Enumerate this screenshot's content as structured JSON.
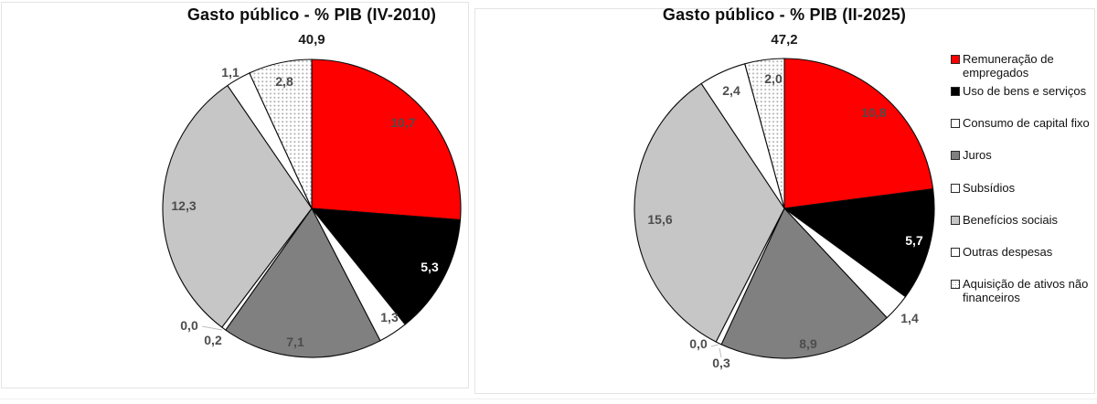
{
  "page": {
    "background": "#FFFFFF"
  },
  "colors": {
    "red": "#FF0000",
    "black": "#000000",
    "white": "#FFFFFF",
    "gray": "#808080",
    "lightgray": "#C6C6C6",
    "dotted_dot": "#ABABAB",
    "label_dark": "#4D4D4D",
    "label_light": "#FFFFFF",
    "slice_stroke": "#0A0A0A",
    "leader": "#BFBFBF"
  },
  "legend": {
    "items": [
      {
        "label": "Remuneração de empregados",
        "swatch": "red"
      },
      {
        "label": "Uso de bens e serviços",
        "swatch": "black"
      },
      {
        "label": "Consumo de capital fixo",
        "swatch": "white"
      },
      {
        "label": "Juros",
        "swatch": "gray"
      },
      {
        "label": "Subsídios",
        "swatch": "white"
      },
      {
        "label": "Benefícios sociais",
        "swatch": "lightgray"
      },
      {
        "label": "Outras despesas",
        "swatch": "white"
      },
      {
        "label": "Aquisição de ativos não financeiros",
        "swatch": "dotted"
      }
    ]
  },
  "chart_data": [
    {
      "type": "pie",
      "title": "Gasto público - % PIB (IV-2010)",
      "total_label": "40,9",
      "center": [
        341,
        228
      ],
      "radius": 163,
      "start_angle_deg": 0,
      "direction": "clockwise",
      "slices": [
        {
          "category": "Remuneração de empregados",
          "value": 10.7,
          "label": "10,7",
          "fill": "red",
          "label_pos": [
            441,
            134
          ],
          "label_color": "dark"
        },
        {
          "category": "Uso de bens e serviços",
          "value": 5.3,
          "label": "5,3",
          "fill": "black",
          "label_pos": [
            470,
            292
          ],
          "label_color": "light"
        },
        {
          "category": "Consumo de capital fixo",
          "value": 1.3,
          "label": "1,3",
          "fill": "white",
          "label_pos": [
            426,
            347
          ],
          "label_color": "dark"
        },
        {
          "category": "Juros",
          "value": 7.1,
          "label": "7,1",
          "fill": "gray",
          "label_pos": [
            323,
            374
          ],
          "label_color": "dark"
        },
        {
          "category": "Subsídios",
          "value": 0.2,
          "label": "0,2",
          "fill": "white",
          "label_pos": [
            233,
            372
          ],
          "label_color": "dark"
        },
        {
          "category": null,
          "value": 0.0,
          "label": "0,0",
          "fill": "white",
          "label_pos": [
            207,
            356
          ],
          "label_color": "dark"
        },
        {
          "category": "Benefícios sociais",
          "value": 12.3,
          "label": "12,3",
          "fill": "lightgray",
          "label_pos": [
            201,
            225
          ],
          "label_color": "dark"
        },
        {
          "category": "Outras despesas",
          "value": 1.1,
          "label": "1,1",
          "fill": "white",
          "label_pos": [
            252,
            79
          ],
          "label_color": "dark"
        },
        {
          "category": "Aquisição de ativos não financeiros",
          "value": 2.8,
          "label": "2,8",
          "fill": "dotted",
          "label_pos": [
            311,
            89
          ],
          "label_color": "dark"
        }
      ],
      "leader_lines": [
        [
          221,
          357,
          243,
          361
        ]
      ]
    },
    {
      "type": "pie",
      "title": "Gasto público - % PIB (II-2025)",
      "total_label": "47,2",
      "center": [
        858,
        228
      ],
      "radius": 164,
      "start_angle_deg": 0,
      "direction": "clockwise",
      "slices": [
        {
          "category": "Remuneração de empregados",
          "value": 10.8,
          "label": "10,8",
          "fill": "red",
          "label_pos": [
            956,
            123
          ],
          "label_color": "dark"
        },
        {
          "category": "Uso de bens e serviços",
          "value": 5.7,
          "label": "5,7",
          "fill": "black",
          "label_pos": [
            1000,
            263
          ],
          "label_color": "light"
        },
        {
          "category": "Consumo de capital fixo",
          "value": 1.4,
          "label": "1,4",
          "fill": "white",
          "label_pos": [
            995,
            348
          ],
          "label_color": "dark"
        },
        {
          "category": "Juros",
          "value": 8.9,
          "label": "8,9",
          "fill": "gray",
          "label_pos": [
            884,
            376
          ],
          "label_color": "dark"
        },
        {
          "category": "Subsídios",
          "value": 0.3,
          "label": "0,3",
          "fill": "white",
          "label_pos": [
            789,
            397
          ],
          "label_color": "dark"
        },
        {
          "category": null,
          "value": 0.0,
          "label": "0,0",
          "fill": "white",
          "label_pos": [
            764,
            376
          ],
          "label_color": "dark"
        },
        {
          "category": "Benefícios sociais",
          "value": 15.6,
          "label": "15,6",
          "fill": "lightgray",
          "label_pos": [
            722,
            240
          ],
          "label_color": "dark"
        },
        {
          "category": "Outras despesas",
          "value": 2.4,
          "label": "2,4",
          "fill": "white",
          "label_pos": [
            800,
            99
          ],
          "label_color": "dark"
        },
        {
          "category": "Aquisição de ativos não financeiros",
          "value": 2.0,
          "label": "2,0",
          "fill": "dotted",
          "label_pos": [
            846,
            86
          ],
          "label_color": "dark"
        }
      ],
      "leader_lines": [
        [
          778,
          379,
          786,
          377
        ],
        [
          789,
          391,
          787,
          381
        ]
      ]
    }
  ]
}
